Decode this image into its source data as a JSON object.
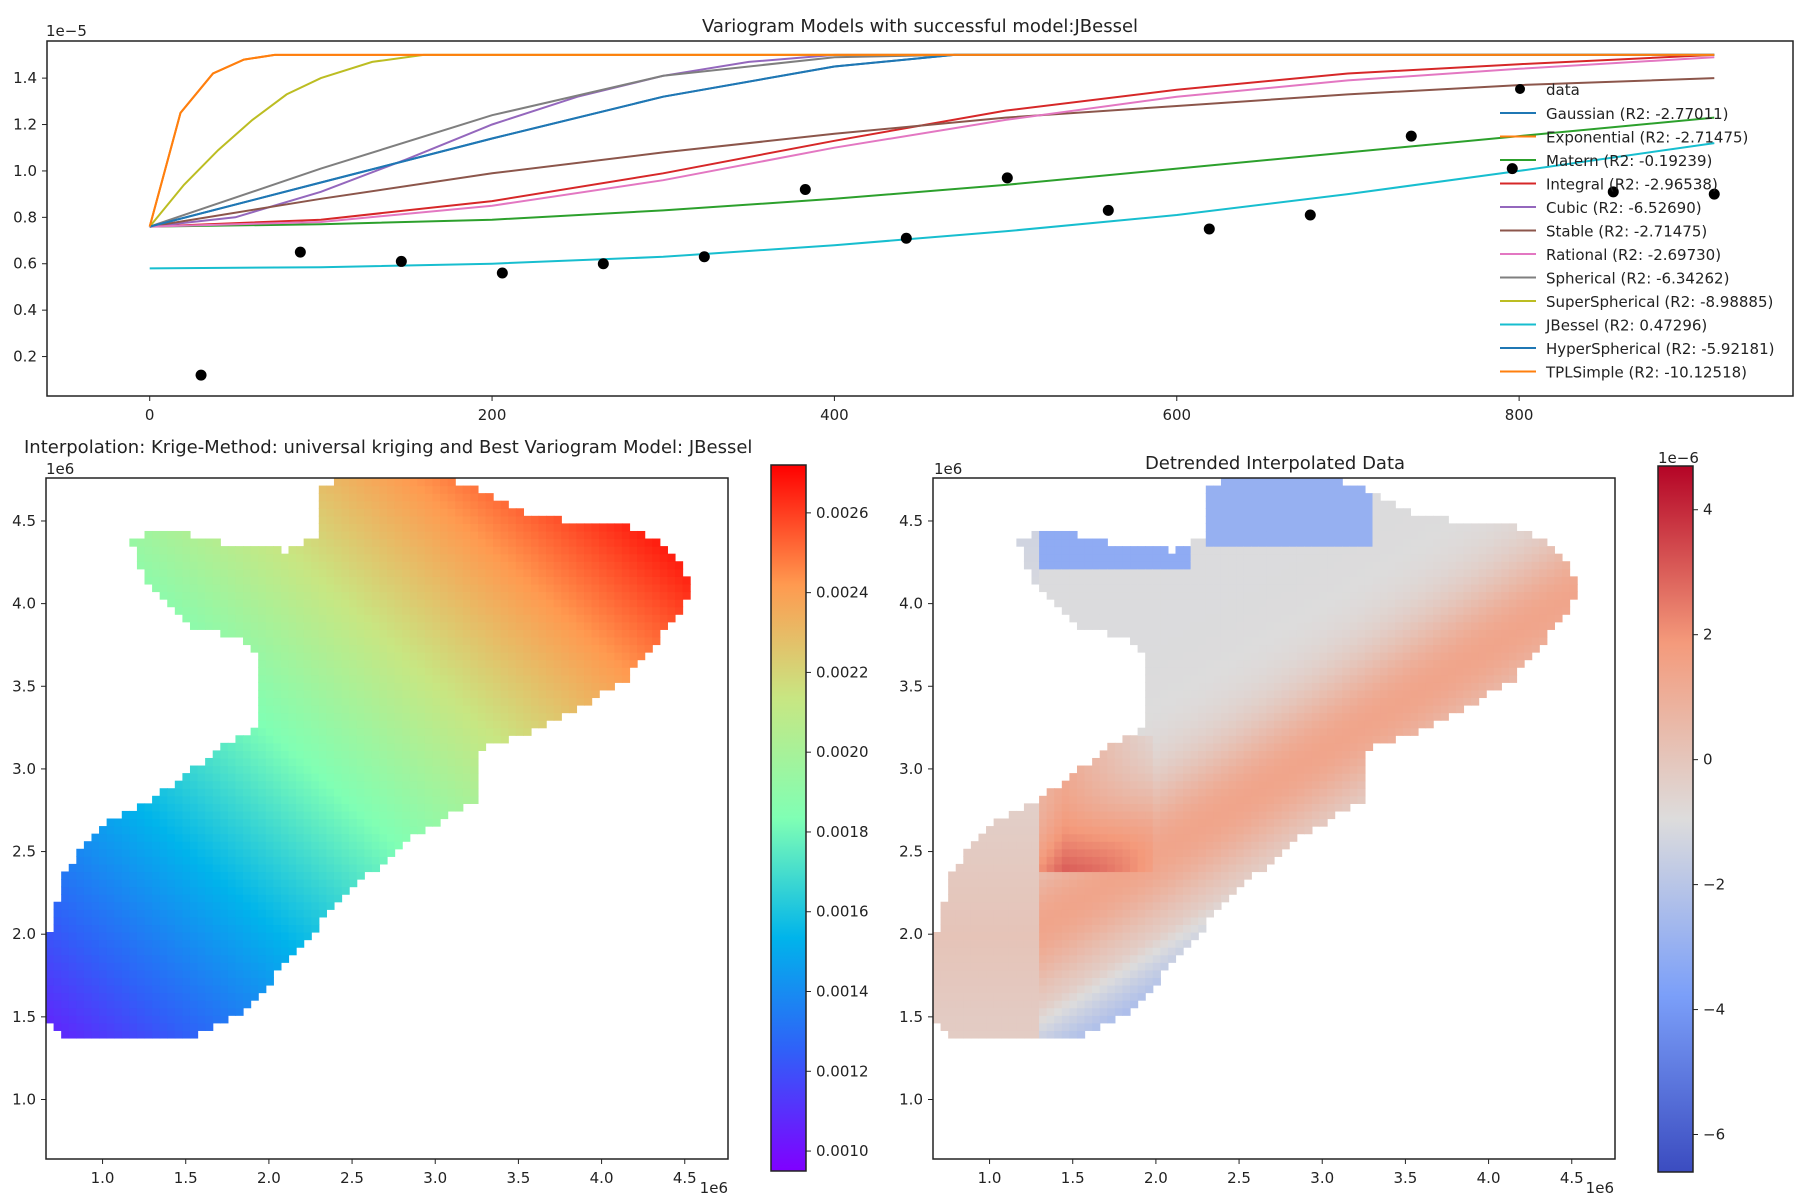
{
  "colors": {
    "Gaussian": "#1f77b4",
    "Exponential": "#ff7f0e",
    "Matern": "#2ca02c",
    "Integral": "#d62728",
    "Cubic": "#9467bd",
    "Stable": "#8c564b",
    "Rational": "#e377c2",
    "Spherical": "#7f7f7f",
    "SuperSpherical": "#bcbd22",
    "JBessel": "#17becf",
    "HyperSpherical": "#1f77b4",
    "TPLSimple": "#ff7f0e"
  },
  "chart_data": [
    {
      "type": "line",
      "title": "Variogram Models with successful model:JBessel",
      "xlabel": "",
      "ylabel": "",
      "y_offset_label": "1e−5",
      "xlim": [
        -60,
        960
      ],
      "ylim": [
        0.03,
        1.56
      ],
      "x_ticks": [
        0,
        200,
        400,
        600,
        800
      ],
      "y_ticks": [
        0.2,
        0.4,
        0.6,
        0.8,
        1.0,
        1.2,
        1.4
      ],
      "grid": false,
      "legend_position": "right",
      "data_points": {
        "name": "data",
        "x": [
          30,
          88,
          147,
          206,
          265,
          324,
          383,
          442,
          501,
          560,
          619,
          678,
          737,
          796,
          855,
          914
        ],
        "y": [
          0.12,
          0.65,
          0.61,
          0.56,
          0.6,
          0.63,
          0.92,
          0.71,
          0.97,
          0.83,
          0.75,
          0.81,
          1.15,
          1.01,
          0.91,
          0.9
        ]
      },
      "series": [
        {
          "name": "Gaussian (R2: -2.77011)",
          "key": "Gaussian",
          "x": [
            0,
            100,
            200,
            300,
            400,
            470,
            500,
            914
          ],
          "y": [
            0.76,
            0.95,
            1.14,
            1.32,
            1.45,
            1.5,
            1.5,
            1.5
          ]
        },
        {
          "name": "Exponential (R2: -2.71475)",
          "key": "Exponential",
          "x": [
            0,
            18,
            37,
            55,
            73,
            91,
            150,
            914
          ],
          "y": [
            0.76,
            1.25,
            1.42,
            1.48,
            1.5,
            1.5,
            1.5,
            1.5
          ]
        },
        {
          "name": "Matern (R2: -0.19239)",
          "key": "Matern",
          "x": [
            0,
            100,
            200,
            300,
            400,
            500,
            600,
            700,
            800,
            914
          ],
          "y": [
            0.76,
            0.77,
            0.79,
            0.83,
            0.88,
            0.94,
            1.01,
            1.08,
            1.15,
            1.23
          ]
        },
        {
          "name": "Integral (R2: -2.96538)",
          "key": "Integral",
          "x": [
            0,
            100,
            200,
            300,
            400,
            500,
            600,
            700,
            800,
            914
          ],
          "y": [
            0.76,
            0.79,
            0.87,
            0.99,
            1.13,
            1.26,
            1.35,
            1.42,
            1.46,
            1.5
          ]
        },
        {
          "name": "Cubic (R2: -6.52690)",
          "key": "Cubic",
          "x": [
            0,
            50,
            100,
            150,
            200,
            250,
            300,
            350,
            400,
            450,
            914
          ],
          "y": [
            0.76,
            0.8,
            0.91,
            1.05,
            1.2,
            1.32,
            1.41,
            1.47,
            1.5,
            1.5,
            1.5
          ]
        },
        {
          "name": "Stable (R2: -2.71475)",
          "key": "Stable",
          "x": [
            0,
            100,
            200,
            300,
            400,
            500,
            600,
            700,
            800,
            914
          ],
          "y": [
            0.76,
            0.88,
            0.99,
            1.08,
            1.16,
            1.23,
            1.28,
            1.33,
            1.37,
            1.4
          ]
        },
        {
          "name": "Rational (R2: -2.69730)",
          "key": "Rational",
          "x": [
            0,
            100,
            200,
            300,
            400,
            500,
            600,
            700,
            800,
            914
          ],
          "y": [
            0.76,
            0.78,
            0.85,
            0.96,
            1.1,
            1.22,
            1.32,
            1.39,
            1.44,
            1.49
          ]
        },
        {
          "name": "Spherical (R2: -6.34262)",
          "key": "Spherical",
          "x": [
            0,
            100,
            200,
            300,
            400,
            470,
            914
          ],
          "y": [
            0.76,
            1.01,
            1.24,
            1.41,
            1.49,
            1.5,
            1.5
          ]
        },
        {
          "name": "SuperSpherical (R2: -8.98885)",
          "key": "SuperSpherical",
          "x": [
            0,
            20,
            40,
            60,
            80,
            100,
            130,
            160,
            914
          ],
          "y": [
            0.76,
            0.94,
            1.09,
            1.22,
            1.33,
            1.4,
            1.47,
            1.5,
            1.5
          ]
        },
        {
          "name": "JBessel (R2: 0.47296)",
          "key": "JBessel",
          "x": [
            0,
            100,
            200,
            300,
            400,
            500,
            600,
            700,
            800,
            914
          ],
          "y": [
            0.58,
            0.585,
            0.6,
            0.63,
            0.68,
            0.74,
            0.81,
            0.9,
            1.0,
            1.12
          ]
        },
        {
          "name": "HyperSpherical (R2: -5.92181)",
          "key": "HyperSpherical",
          "x": [
            0,
            100,
            200,
            300,
            400,
            470,
            914
          ],
          "y": [
            0.76,
            0.95,
            1.14,
            1.32,
            1.45,
            1.5,
            1.5
          ]
        },
        {
          "name": "TPLSimple (R2: -10.12518)",
          "key": "TPLSimple",
          "x": [
            0,
            18,
            37,
            55,
            73,
            91,
            150,
            914
          ],
          "y": [
            0.76,
            1.25,
            1.42,
            1.48,
            1.5,
            1.5,
            1.5,
            1.5
          ]
        }
      ]
    },
    {
      "type": "heatmap",
      "title": "Interpolation: Krige-Method: universal kriging and Best Variogram Model: JBessel",
      "x_offset_label": "1e6",
      "y_offset_label": "1e6",
      "xlim": [
        0.66,
        4.76
      ],
      "ylim": [
        0.64,
        4.76
      ],
      "x_ticks": [
        1.0,
        1.5,
        2.0,
        2.5,
        3.0,
        3.5,
        4.0,
        4.5
      ],
      "y_ticks": [
        1.0,
        1.5,
        2.0,
        2.5,
        3.0,
        3.5,
        4.0,
        4.5
      ],
      "colormap": "rainbow",
      "colorbar_range": [
        0.00095,
        0.00272
      ],
      "colorbar_ticks": [
        "0.0010",
        "0.0012",
        "0.0014",
        "0.0016",
        "0.0018",
        "0.0020",
        "0.0022",
        "0.0024",
        "0.0026"
      ],
      "colorbar_values": [
        0.001,
        0.0012,
        0.0014,
        0.0016,
        0.0018,
        0.002,
        0.0022,
        0.0024,
        0.0026
      ]
    },
    {
      "type": "heatmap",
      "title": "Detrended Interpolated Data",
      "x_offset_label": "1e6",
      "y_offset_label": "1e6",
      "xlim": [
        0.66,
        4.76
      ],
      "ylim": [
        0.64,
        4.76
      ],
      "x_ticks": [
        1.0,
        1.5,
        2.0,
        2.5,
        3.0,
        3.5,
        4.0,
        4.5
      ],
      "y_ticks": [
        1.0,
        1.5,
        2.0,
        2.5,
        3.0,
        3.5,
        4.0,
        4.5
      ],
      "colormap": "coolwarm",
      "colorbar_offset_label": "1e−6",
      "colorbar_range": [
        -6.6,
        4.7
      ],
      "colorbar_ticks": [
        "−6",
        "−4",
        "−2",
        "0",
        "2",
        "4"
      ],
      "colorbar_values": [
        -6,
        -4,
        -2,
        0,
        2,
        4
      ]
    }
  ]
}
